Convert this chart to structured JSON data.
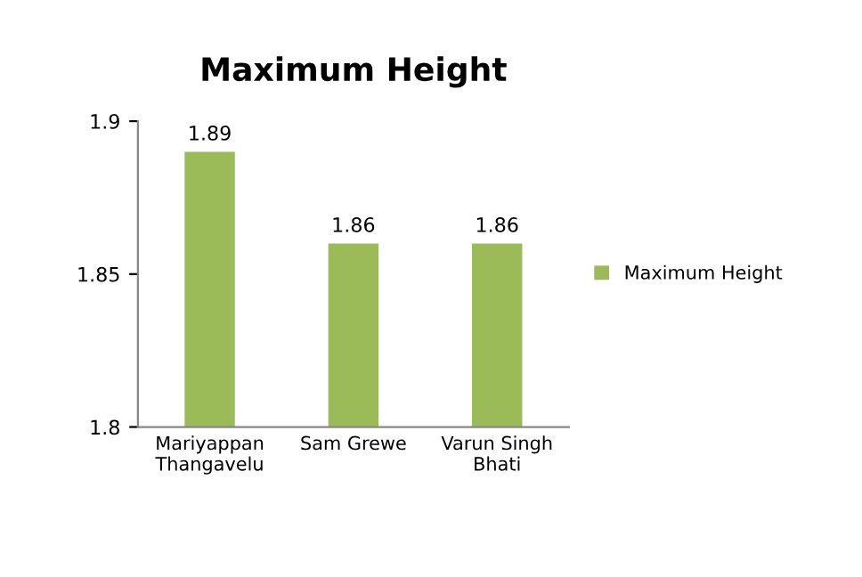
{
  "chart_data": {
    "type": "bar",
    "title": "Maximum Height",
    "categories": [
      "Mariyappan\nThangavelu",
      "Sam Grewe",
      "Varun Singh\nBhati"
    ],
    "series": [
      {
        "name": "Maximum Height",
        "color": "#9bbb59",
        "values": [
          1.89,
          1.86,
          1.86
        ]
      }
    ],
    "ylim": [
      1.8,
      1.9
    ],
    "yticks": [
      1.8,
      {
        "value": 1.85,
        "label": "1.85"
      },
      1.9
    ],
    "data_labels": true,
    "legend": "right",
    "grid": false
  }
}
